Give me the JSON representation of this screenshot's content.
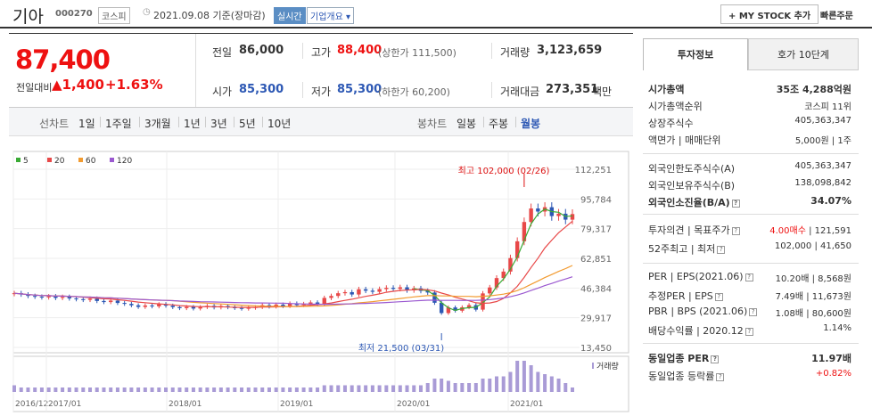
{
  "header": {
    "name": "기아",
    "code": "000270",
    "market": "코스피",
    "as_of": "2021.09.08 기준(장마감)",
    "realtime": "실시간",
    "company_info": "기업개요",
    "mystock": "+ MY STOCK 추가",
    "quick_order": "빠른주문"
  },
  "price": {
    "current": "87,400",
    "change_label": "전일대비",
    "change": "▲1,400",
    "change_pct": "+1.63%"
  },
  "quote": {
    "prev_label": "전일",
    "prev": "86,000",
    "high_label": "고가",
    "high": "88,400",
    "upper": "(상한가 111,500)",
    "volume_label": "거래량",
    "volume": "3,123,659",
    "open_label": "시가",
    "open": "85,300",
    "low_label": "저가",
    "low": "85,300",
    "lower": "(하한가 60,200)",
    "amount_label": "거래대금",
    "amount": "273,351",
    "amount_unit": "백만"
  },
  "period": {
    "line_label": "선차트",
    "line_items": [
      "1일",
      "1주일",
      "3개월",
      "1년",
      "3년",
      "5년",
      "10년"
    ],
    "candle_label": "봉차트",
    "candle_items": [
      "일봉",
      "주봉",
      "월봉"
    ]
  },
  "chart_data": {
    "type": "candlestick",
    "legend": [
      "5",
      "20",
      "60",
      "120"
    ],
    "legend_colors": [
      "#3aaa35",
      "#e84848",
      "#f29b30",
      "#9b59d0"
    ],
    "y_ticks": [
      "112,251",
      "95,784",
      "79,317",
      "62,851",
      "46,384",
      "29,917",
      "13,450"
    ],
    "ylim": [
      13450,
      112251
    ],
    "x_ticks": [
      "2016/12",
      "2017/01",
      "2018/01",
      "2019/01",
      "2020/01",
      "2021/01"
    ],
    "high_note": "최고 102,000 (02/26)",
    "low_note": "최저 21,500 (03/31)",
    "volume_label": "거래량",
    "closes": [
      43500,
      42800,
      42000,
      41600,
      41200,
      41800,
      40900,
      41500,
      40600,
      40200,
      39800,
      40500,
      39200,
      38600,
      39400,
      38100,
      37600,
      36800,
      35900,
      36700,
      36200,
      37400,
      36600,
      35800,
      35200,
      35900,
      35000,
      35800,
      36500,
      35600,
      36400,
      35700,
      35300,
      34900,
      35400,
      35800,
      36900,
      36100,
      37200,
      36400,
      37800,
      36900,
      37600,
      38400,
      37600,
      40900,
      42000,
      43500,
      44100,
      42800,
      45700,
      44900,
      44300,
      45800,
      46500,
      45900,
      46800,
      45100,
      46200,
      44800,
      43900,
      38200,
      32500,
      35600,
      33800,
      35700,
      36900,
      34400,
      43400,
      46700,
      51900,
      55500,
      63000,
      72300,
      83000,
      90500,
      88800,
      91200,
      86300,
      87600,
      84300,
      87400
    ],
    "volume": [
      3,
      2,
      2,
      2,
      2,
      2,
      2,
      2,
      2,
      2,
      2,
      2,
      2,
      2,
      2,
      2,
      2,
      2,
      2,
      2,
      2,
      2,
      2,
      2,
      2,
      2,
      2,
      2,
      2,
      2,
      2,
      2,
      2,
      2,
      2,
      2,
      2,
      2,
      2,
      2,
      2,
      2,
      2,
      2,
      2,
      3,
      3,
      3,
      3,
      3,
      3,
      3,
      3,
      3,
      3,
      3,
      3,
      3,
      3,
      3,
      4,
      6,
      6,
      5,
      4,
      4,
      4,
      4,
      6,
      6,
      7,
      7,
      9,
      14,
      14,
      12,
      9,
      8,
      7,
      6,
      4,
      2
    ]
  },
  "panel": {
    "tab_info": "투자정보",
    "tab_quote": "호가 10단계",
    "rows1": [
      {
        "k": "시가총액",
        "v": "35조 4,288억원"
      },
      {
        "k": "시가총액순위",
        "v": "코스피  11위"
      },
      {
        "k": "상장주식수",
        "v": "405,363,347"
      },
      {
        "k": "액면가 | 매매단위",
        "v": "5,000원 | 1주"
      }
    ],
    "rows2": [
      {
        "k": "외국인한도주식수(A)",
        "v": "405,363,347"
      },
      {
        "k": "외국인보유주식수(B)",
        "v": "138,098,842"
      },
      {
        "k": "외국인소진율(B/A)",
        "v": "34.07%"
      }
    ],
    "rows3": [
      {
        "k": "투자의견 | 목표주가",
        "v1": "4.00매수",
        "v2": "| 121,591"
      },
      {
        "k": "52주최고 | 최저",
        "v": "102,000 | 41,650"
      }
    ],
    "rows4": [
      {
        "k": "PER | EPS(2021.06)",
        "v": "10.20배 | 8,568원"
      },
      {
        "k": "추정PER | EPS",
        "v": "7.49배 | 11,673원"
      },
      {
        "k": "PBR | BPS (2021.06)",
        "v": "1.08배 | 80,600원"
      },
      {
        "k": "배당수익률 | 2020.12",
        "v": "1.14%"
      }
    ],
    "rows5": [
      {
        "k": "동일업종 PER",
        "v": "11.97배"
      },
      {
        "k": "동일업종 등락률",
        "v": "+0.82%"
      }
    ]
  },
  "colors": {
    "up": "#e11",
    "down": "#2d58b4",
    "accent": "#5b8ec4"
  }
}
